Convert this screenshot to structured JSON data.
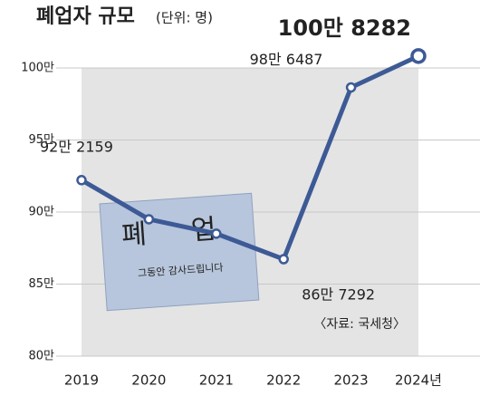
{
  "chart_data": {
    "type": "line",
    "title": "폐업자 규모",
    "subtitle": "(단위: 명)",
    "categories": [
      "2019",
      "2020",
      "2021",
      "2022",
      "2023",
      "2024년"
    ],
    "values": [
      922159,
      895000,
      885000,
      867292,
      986487,
      1008282
    ],
    "value_labels": [
      "92만 2159",
      null,
      null,
      "86만 7292",
      "98만 6487",
      "100만 8282"
    ],
    "color": "#3d5a96",
    "ylim": [
      800000,
      1000000
    ],
    "yticks": [
      {
        "value": 800000,
        "label": "80만"
      },
      {
        "value": 850000,
        "label": "85만"
      },
      {
        "value": 900000,
        "label": "90만"
      },
      {
        "value": 950000,
        "label": "95만"
      },
      {
        "value": 1000000,
        "label": "100만"
      }
    ],
    "grid": true,
    "annotations": [
      "〈자료: 국세청〉"
    ],
    "sign_texts": [
      "폐 업",
      "그동안 감사드립니다"
    ]
  }
}
